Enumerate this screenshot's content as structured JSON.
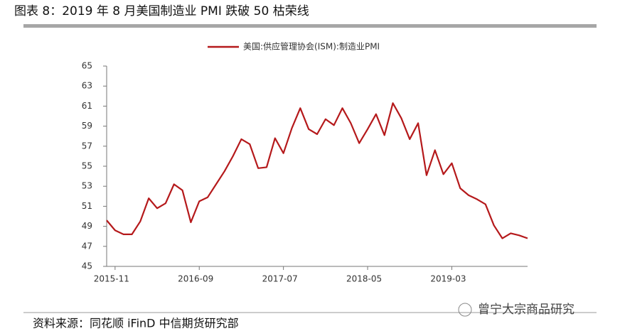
{
  "chart_data": {
    "type": "line",
    "title": "图表 8：2019 年 8 月美国制造业 PMI 跌破 50 枯荣线",
    "source": "资料来源：同花顺 iFinD 中信期货研究部",
    "watermark": "曾宁大宗商品研究",
    "categories": [
      null,
      "2015-11",
      null,
      null,
      null,
      null,
      null,
      null,
      null,
      null,
      null,
      "2016-09",
      null,
      null,
      null,
      null,
      null,
      null,
      null,
      null,
      null,
      "2017-07",
      null,
      null,
      null,
      null,
      null,
      null,
      null,
      null,
      null,
      "2018-05",
      null,
      null,
      null,
      null,
      null,
      null,
      null,
      null,
      null,
      "2019-03",
      null,
      null,
      null,
      null,
      null,
      null,
      null,
      null,
      null
    ],
    "series": [
      {
        "name": "美国:供应管理协会(ISM):制造业PMI",
        "color": "#b5191b",
        "values": [
          49.6,
          48.6,
          48.2,
          48.2,
          49.5,
          51.8,
          50.8,
          51.3,
          53.2,
          52.6,
          49.4,
          51.5,
          51.9,
          53.2,
          54.5,
          56.0,
          57.7,
          57.2,
          54.8,
          54.9,
          57.8,
          56.3,
          58.8,
          60.8,
          58.7,
          58.2,
          59.7,
          59.1,
          60.8,
          59.3,
          57.3,
          58.7,
          60.2,
          58.1,
          61.3,
          59.8,
          57.7,
          59.3,
          54.1,
          56.6,
          54.2,
          55.3,
          52.8,
          52.1,
          51.7,
          51.2,
          49.1,
          47.8,
          48.3,
          48.1,
          47.8
        ]
      }
    ],
    "ylim": [
      45,
      65
    ],
    "yticks": [
      45,
      47,
      49,
      51,
      53,
      55,
      57,
      59,
      61,
      63,
      65
    ],
    "legend": "top"
  }
}
